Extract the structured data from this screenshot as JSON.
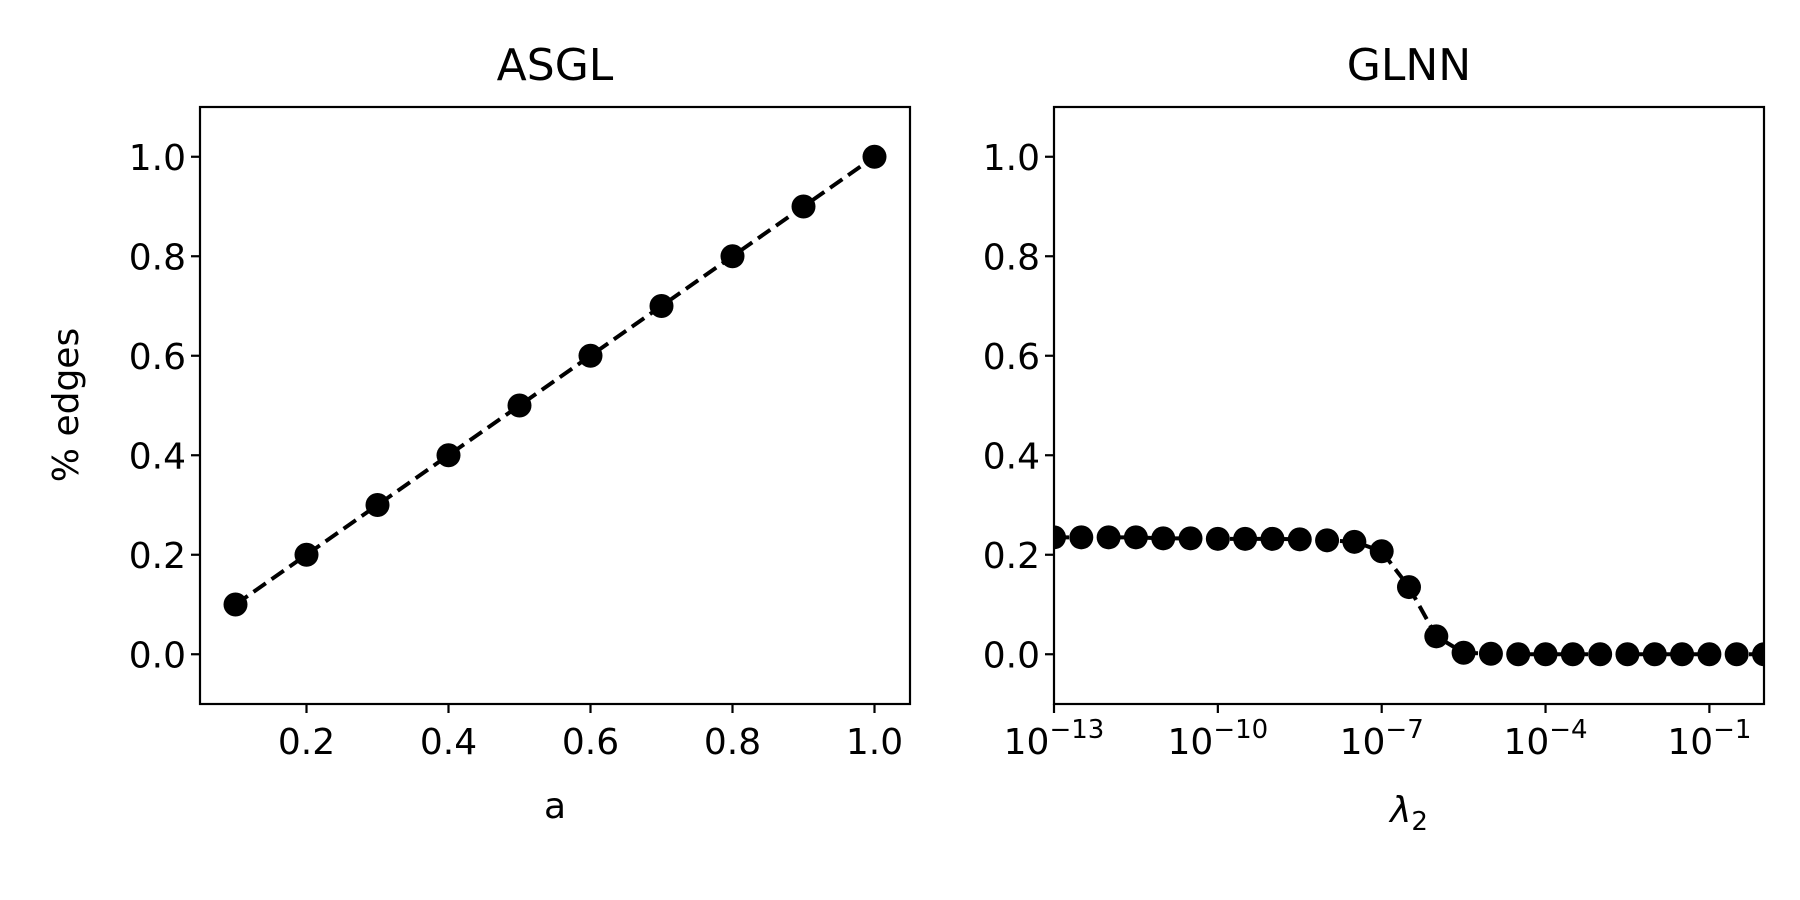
{
  "chart_data": [
    {
      "type": "line",
      "title": "ASGL",
      "xlabel": "a",
      "ylabel": "% edges",
      "xscale": "linear",
      "xlim": [
        0.05,
        1.05
      ],
      "ylim": [
        -0.1,
        1.1
      ],
      "xticks": [
        0.2,
        0.4,
        0.6,
        0.8,
        1.0
      ],
      "xtick_labels": [
        "0.2",
        "0.4",
        "0.6",
        "0.8",
        "1.0"
      ],
      "yticks": [
        0.0,
        0.2,
        0.4,
        0.6,
        0.8,
        1.0
      ],
      "ytick_labels": [
        "0.0",
        "0.2",
        "0.4",
        "0.6",
        "0.8",
        "1.0"
      ],
      "grid": false,
      "marker": "circle",
      "linestyle": "dashed",
      "color": "#000000",
      "series": [
        {
          "x": [
            0.1,
            0.2,
            0.3,
            0.4,
            0.5,
            0.6,
            0.7,
            0.8,
            0.9,
            1.0
          ],
          "y": [
            0.1,
            0.2,
            0.3,
            0.4,
            0.5,
            0.6,
            0.7,
            0.8,
            0.9,
            1.0
          ]
        }
      ]
    },
    {
      "type": "line",
      "title": "GLNN",
      "xlabel_base": "λ",
      "xlabel_sub": "2",
      "ylabel": "",
      "xscale": "log",
      "xlim": [
        1e-13,
        1.0
      ],
      "ylim": [
        -0.1,
        1.1
      ],
      "xticks": [
        1e-13,
        1e-10,
        1e-07,
        0.0001,
        0.1
      ],
      "xtick_labels": [
        {
          "base": "10",
          "exp": "−13"
        },
        {
          "base": "10",
          "exp": "−10"
        },
        {
          "base": "10",
          "exp": "−7"
        },
        {
          "base": "10",
          "exp": "−4"
        },
        {
          "base": "10",
          "exp": "−1"
        }
      ],
      "yticks": [
        0.0,
        0.2,
        0.4,
        0.6,
        0.8,
        1.0
      ],
      "ytick_labels": [
        "0.0",
        "0.2",
        "0.4",
        "0.6",
        "0.8",
        "1.0"
      ],
      "grid": false,
      "marker": "circle",
      "linestyle": "dashed",
      "color": "#000000",
      "series": [
        {
          "x": [
            1e-13,
            3.16e-13,
            1e-12,
            3.16e-12,
            1e-11,
            3.16e-11,
            1e-10,
            3.16e-10,
            1e-09,
            3.16e-09,
            1e-08,
            3.16e-08,
            1e-07,
            3.16e-07,
            1e-06,
            3.16e-06,
            1e-05,
            3.16e-05,
            0.0001,
            0.000316,
            0.001,
            0.00316,
            0.01,
            0.0316,
            0.1,
            0.316,
            1.0
          ],
          "y": [
            0.235,
            0.235,
            0.235,
            0.235,
            0.233,
            0.233,
            0.232,
            0.232,
            0.232,
            0.231,
            0.229,
            0.226,
            0.207,
            0.135,
            0.036,
            0.003,
            0.001,
            0.0,
            0.0,
            0.0,
            0.0,
            0.0,
            0.0,
            0.0,
            0.0,
            0.0,
            0.0
          ]
        }
      ]
    }
  ]
}
